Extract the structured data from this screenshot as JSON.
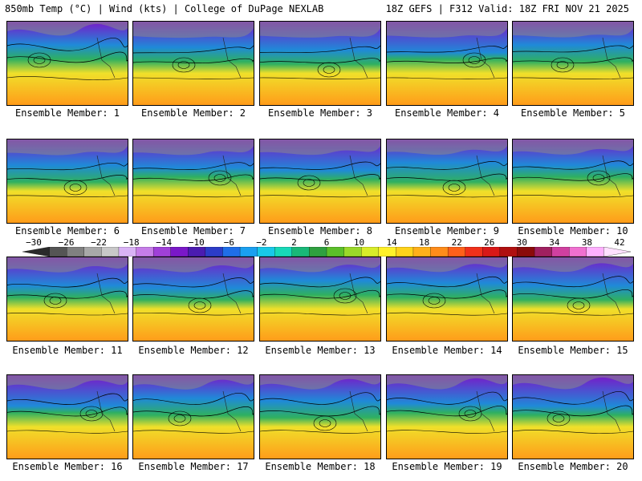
{
  "header": {
    "left": "850mb Temp (°C) | Wind (kts) | College of DuPage NEXLAB",
    "right": "18Z GEFS | F312 Valid: 18Z FRI NOV 21 2025"
  },
  "panels": [
    {
      "caption": "Ensemble Member: 1"
    },
    {
      "caption": "Ensemble Member: 2"
    },
    {
      "caption": "Ensemble Member: 3"
    },
    {
      "caption": "Ensemble Member: 4"
    },
    {
      "caption": "Ensemble Member: 5"
    },
    {
      "caption": "Ensemble Member: 6"
    },
    {
      "caption": "Ensemble Member: 7"
    },
    {
      "caption": "Ensemble Member: 8"
    },
    {
      "caption": "Ensemble Member: 9"
    },
    {
      "caption": "Ensemble Member: 10"
    },
    {
      "caption": "Ensemble Member: 11"
    },
    {
      "caption": "Ensemble Member: 12"
    },
    {
      "caption": "Ensemble Member: 13"
    },
    {
      "caption": "Ensemble Member: 14"
    },
    {
      "caption": "Ensemble Member: 15"
    },
    {
      "caption": "Ensemble Member: 16"
    },
    {
      "caption": "Ensemble Member: 17"
    },
    {
      "caption": "Ensemble Member: 18"
    },
    {
      "caption": "Ensemble Member: 19"
    },
    {
      "caption": "Ensemble Member: 20"
    }
  ],
  "colorbar": {
    "labels": [
      "−30",
      "−26",
      "−22",
      "−18",
      "−14",
      "−10",
      "−6",
      "−2",
      "2",
      "6",
      "10",
      "14",
      "18",
      "22",
      "26",
      "30",
      "34",
      "38",
      "42"
    ],
    "colors": [
      "#2a2a2a",
      "#555555",
      "#808080",
      "#a8a8a8",
      "#c8c8c8",
      "#d9b3f5",
      "#c67de8",
      "#a040d8",
      "#7a18c8",
      "#4b1cb0",
      "#2c3cc8",
      "#1f6ee8",
      "#1aa0f0",
      "#19c8e8",
      "#18d8b8",
      "#19b878",
      "#2fa040",
      "#5bbf2a",
      "#9ad82a",
      "#d8ec2a",
      "#fff02a",
      "#ffd21a",
      "#ffb01a",
      "#ff8c1a",
      "#ff601a",
      "#f0301a",
      "#d81818",
      "#b01010",
      "#8a0a0a",
      "#a02060",
      "#d040a0",
      "#f070d0",
      "#ffb0ff",
      "#ffe0ff"
    ]
  },
  "style": {
    "cold": "#7a18c8",
    "cool": "#1f8ad8",
    "mid": "#2fb060",
    "warm": "#f0e02a",
    "hot": "#ff9c1a"
  }
}
